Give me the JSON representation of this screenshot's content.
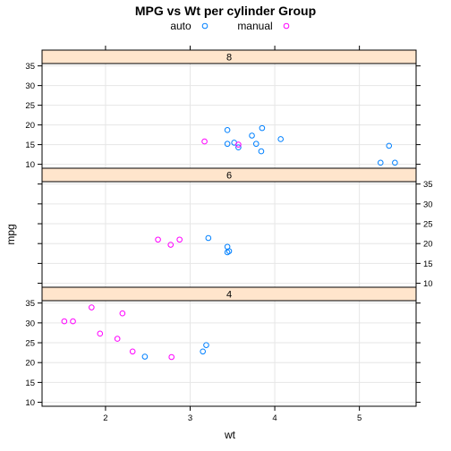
{
  "chart_data": {
    "type": "scatter",
    "title": "MPG vs Wt per cylinder Group",
    "xlabel": "wt",
    "ylabel": "mpg",
    "xlim": [
      1.25,
      5.67
    ],
    "ylim": [
      9,
      35.6
    ],
    "x_ticks": [
      2,
      3,
      4,
      5
    ],
    "y_ticks": [
      10,
      15,
      20,
      25,
      30,
      35
    ],
    "grid": true,
    "legend": {
      "placement": "top",
      "entries": [
        "auto",
        "manual"
      ]
    },
    "colors": {
      "auto": "#0080ff",
      "manual": "#ff00ff",
      "strip_bg": "#ffe5cc",
      "grid": "#e6e6e6"
    },
    "panels": [
      {
        "label": "8",
        "series": [
          {
            "name": "auto",
            "points": [
              [
                3.44,
                18.7
              ],
              [
                3.57,
                14.3
              ],
              [
                4.07,
                16.4
              ],
              [
                3.73,
                17.3
              ],
              [
                3.78,
                15.2
              ],
              [
                5.25,
                10.4
              ],
              [
                5.42,
                10.4
              ],
              [
                5.35,
                14.7
              ],
              [
                3.52,
                15.5
              ],
              [
                3.44,
                15.2
              ],
              [
                3.84,
                13.3
              ],
              [
                3.85,
                19.2
              ]
            ]
          },
          {
            "name": "manual",
            "points": [
              [
                3.17,
                15.8
              ],
              [
                3.57,
                15.0
              ]
            ]
          }
        ]
      },
      {
        "label": "6",
        "series": [
          {
            "name": "auto",
            "points": [
              [
                3.215,
                21.4
              ],
              [
                3.46,
                18.1
              ],
              [
                3.44,
                19.2
              ],
              [
                3.44,
                17.8
              ]
            ]
          },
          {
            "name": "manual",
            "points": [
              [
                2.62,
                21.0
              ],
              [
                2.875,
                21.0
              ],
              [
                2.77,
                19.7
              ]
            ]
          }
        ]
      },
      {
        "label": "4",
        "series": [
          {
            "name": "auto",
            "points": [
              [
                3.19,
                24.4
              ],
              [
                3.15,
                22.8
              ],
              [
                2.465,
                21.5
              ]
            ]
          },
          {
            "name": "manual",
            "points": [
              [
                2.32,
                22.8
              ],
              [
                2.2,
                32.4
              ],
              [
                1.615,
                30.4
              ],
              [
                1.835,
                33.9
              ],
              [
                1.935,
                27.3
              ],
              [
                2.14,
                26.0
              ],
              [
                1.513,
                30.4
              ],
              [
                2.78,
                21.4
              ]
            ]
          }
        ]
      }
    ]
  }
}
